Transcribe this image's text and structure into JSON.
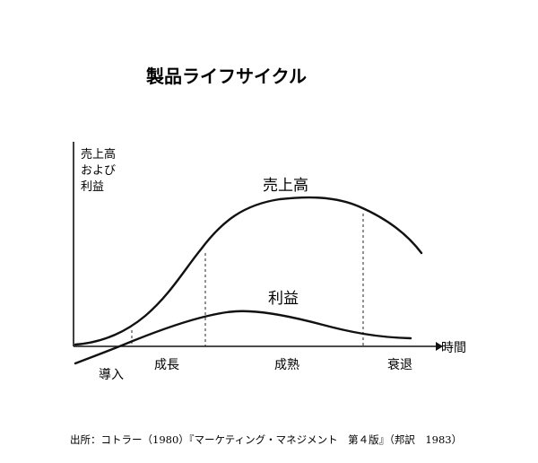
{
  "title": "製品ライフサイクル",
  "y_axis_label_lines": [
    "売上高",
    "および",
    "利益"
  ],
  "x_axis_label": "時間",
  "curves": {
    "sales_label": "売上高",
    "profit_label": "利益"
  },
  "stages": [
    {
      "label": "導入"
    },
    {
      "label": "成長"
    },
    {
      "label": "成熟"
    },
    {
      "label": "衰退"
    }
  ],
  "source": "出所：コトラー（1980）『マーケティング・マネジメント　第４版』（邦訳　1983）"
}
